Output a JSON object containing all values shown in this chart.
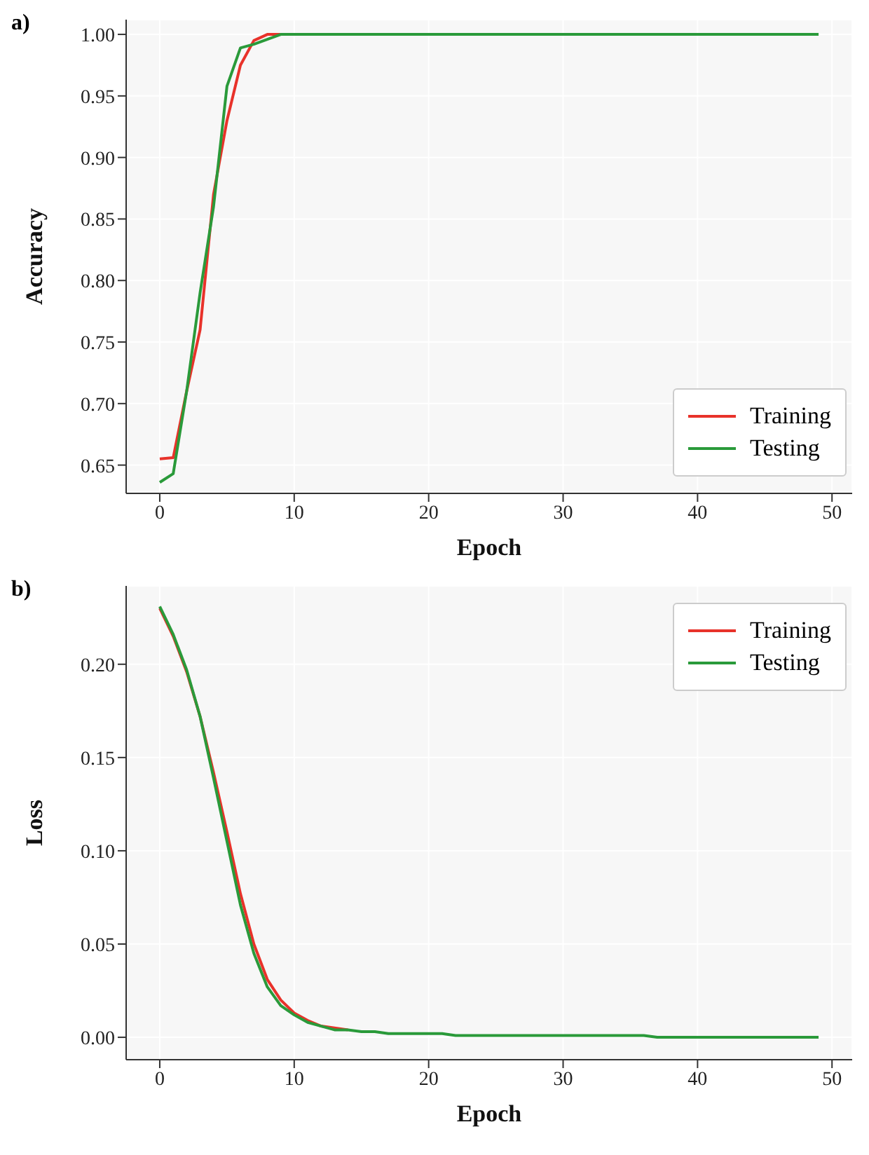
{
  "chart_data": [
    {
      "type": "line",
      "annotations": [
        "a)"
      ],
      "xlabel": "Epoch",
      "ylabel": "Accuracy",
      "xlim": [
        -2.5,
        51.5
      ],
      "xticks": [
        0,
        10,
        20,
        30,
        40,
        50
      ],
      "ylim": [
        0.627,
        1.012
      ],
      "yticks": [
        {
          "value": 0.65,
          "label": "0.65"
        },
        {
          "value": 0.7,
          "label": "0.70"
        },
        {
          "value": 0.75,
          "label": "0.75"
        },
        {
          "value": 0.8,
          "label": "0.80"
        },
        {
          "value": 0.85,
          "label": "0.85"
        },
        {
          "value": 0.9,
          "label": "0.90"
        },
        {
          "value": 0.95,
          "label": "0.95"
        },
        {
          "value": 1.0,
          "label": "1.00"
        }
      ],
      "grid": true,
      "legend": "bottom right",
      "line_style": "solid",
      "x": [
        0,
        1,
        2,
        3,
        4,
        5,
        6,
        7,
        8,
        9,
        10,
        11,
        12,
        13,
        14,
        15,
        16,
        17,
        18,
        19,
        20,
        21,
        22,
        23,
        24,
        25,
        26,
        27,
        28,
        29,
        30,
        31,
        32,
        33,
        34,
        35,
        36,
        37,
        38,
        39,
        40,
        41,
        42,
        43,
        44,
        45,
        46,
        47,
        48,
        49
      ],
      "series": [
        {
          "name": "Training",
          "color": "#e8322a",
          "values": [
            0.655,
            0.656,
            0.71,
            0.76,
            0.87,
            0.93,
            0.975,
            0.995,
            1.0,
            1.0,
            null,
            null,
            null,
            null,
            null,
            null,
            null,
            null,
            null,
            null,
            null,
            null,
            null,
            null,
            null,
            null,
            null,
            null,
            null,
            null,
            null,
            null,
            null,
            null,
            null,
            null,
            null,
            null,
            null,
            null,
            null,
            null,
            null,
            null,
            null,
            null,
            null,
            null,
            null,
            null
          ]
        },
        {
          "name": "Testing",
          "color": "#2a9a3a",
          "values": [
            0.636,
            0.643,
            0.71,
            0.79,
            0.86,
            0.958,
            0.989,
            0.992,
            0.996,
            1.0,
            1.0,
            1.0,
            1.0,
            1.0,
            1.0,
            1.0,
            1.0,
            1.0,
            1.0,
            1.0,
            1.0,
            1.0,
            1.0,
            1.0,
            1.0,
            1.0,
            1.0,
            1.0,
            1.0,
            1.0,
            1.0,
            1.0,
            1.0,
            1.0,
            1.0,
            1.0,
            1.0,
            1.0,
            1.0,
            1.0,
            1.0,
            1.0,
            1.0,
            1.0,
            1.0,
            1.0,
            1.0,
            1.0,
            1.0,
            1.0
          ]
        }
      ]
    },
    {
      "type": "line",
      "annotations": [
        "b)"
      ],
      "xlabel": "Epoch",
      "ylabel": "Loss",
      "xlim": [
        -2.5,
        51.5
      ],
      "xticks": [
        0,
        10,
        20,
        30,
        40,
        50
      ],
      "ylim": [
        -0.012,
        0.242
      ],
      "yticks": [
        {
          "value": 0,
          "label": "0.00"
        },
        {
          "value": 0.05,
          "label": "0.05"
        },
        {
          "value": 0.1,
          "label": "0.10"
        },
        {
          "value": 0.15,
          "label": "0.15"
        },
        {
          "value": 0.2,
          "label": "0.20"
        }
      ],
      "grid": true,
      "legend": "top right",
      "line_style": "solid",
      "x": [
        0,
        1,
        2,
        3,
        4,
        5,
        6,
        7,
        8,
        9,
        10,
        11,
        12,
        13,
        14,
        15,
        16,
        17,
        18,
        19,
        20,
        21,
        22,
        23,
        24,
        25,
        26,
        27,
        28,
        29,
        30,
        31,
        32,
        33,
        34,
        35,
        36,
        37,
        38,
        39,
        40,
        41,
        42,
        43,
        44,
        45,
        46,
        47,
        48,
        49
      ],
      "series": [
        {
          "name": "Training",
          "color": "#e8322a",
          "values": [
            0.23,
            0.215,
            0.196,
            0.172,
            0.142,
            0.11,
            0.077,
            0.05,
            0.031,
            0.02,
            0.013,
            0.009,
            0.006,
            0.005,
            0.004,
            null,
            null,
            null,
            null,
            null,
            null,
            null,
            null,
            null,
            null,
            null,
            null,
            null,
            null,
            null,
            null,
            null,
            null,
            null,
            null,
            null,
            null,
            null,
            null,
            null,
            null,
            null,
            null,
            null,
            null,
            null,
            null,
            null,
            null,
            null
          ]
        },
        {
          "name": "Testing",
          "color": "#2a9a3a",
          "values": [
            0.231,
            0.216,
            0.197,
            0.172,
            0.139,
            0.105,
            0.071,
            0.045,
            0.027,
            0.017,
            0.012,
            0.008,
            0.006,
            0.004,
            0.004,
            0.003,
            0.003,
            0.002,
            0.002,
            0.002,
            0.002,
            0.002,
            0.001,
            0.001,
            0.001,
            0.001,
            0.001,
            0.001,
            0.001,
            0.001,
            0.001,
            0.001,
            0.001,
            0.001,
            0.001,
            0.001,
            0.001,
            0.0,
            0.0,
            0.0,
            0.0,
            0.0,
            0.0,
            0.0,
            0.0,
            0.0,
            0.0,
            0.0,
            0.0,
            0.0
          ]
        }
      ]
    }
  ]
}
